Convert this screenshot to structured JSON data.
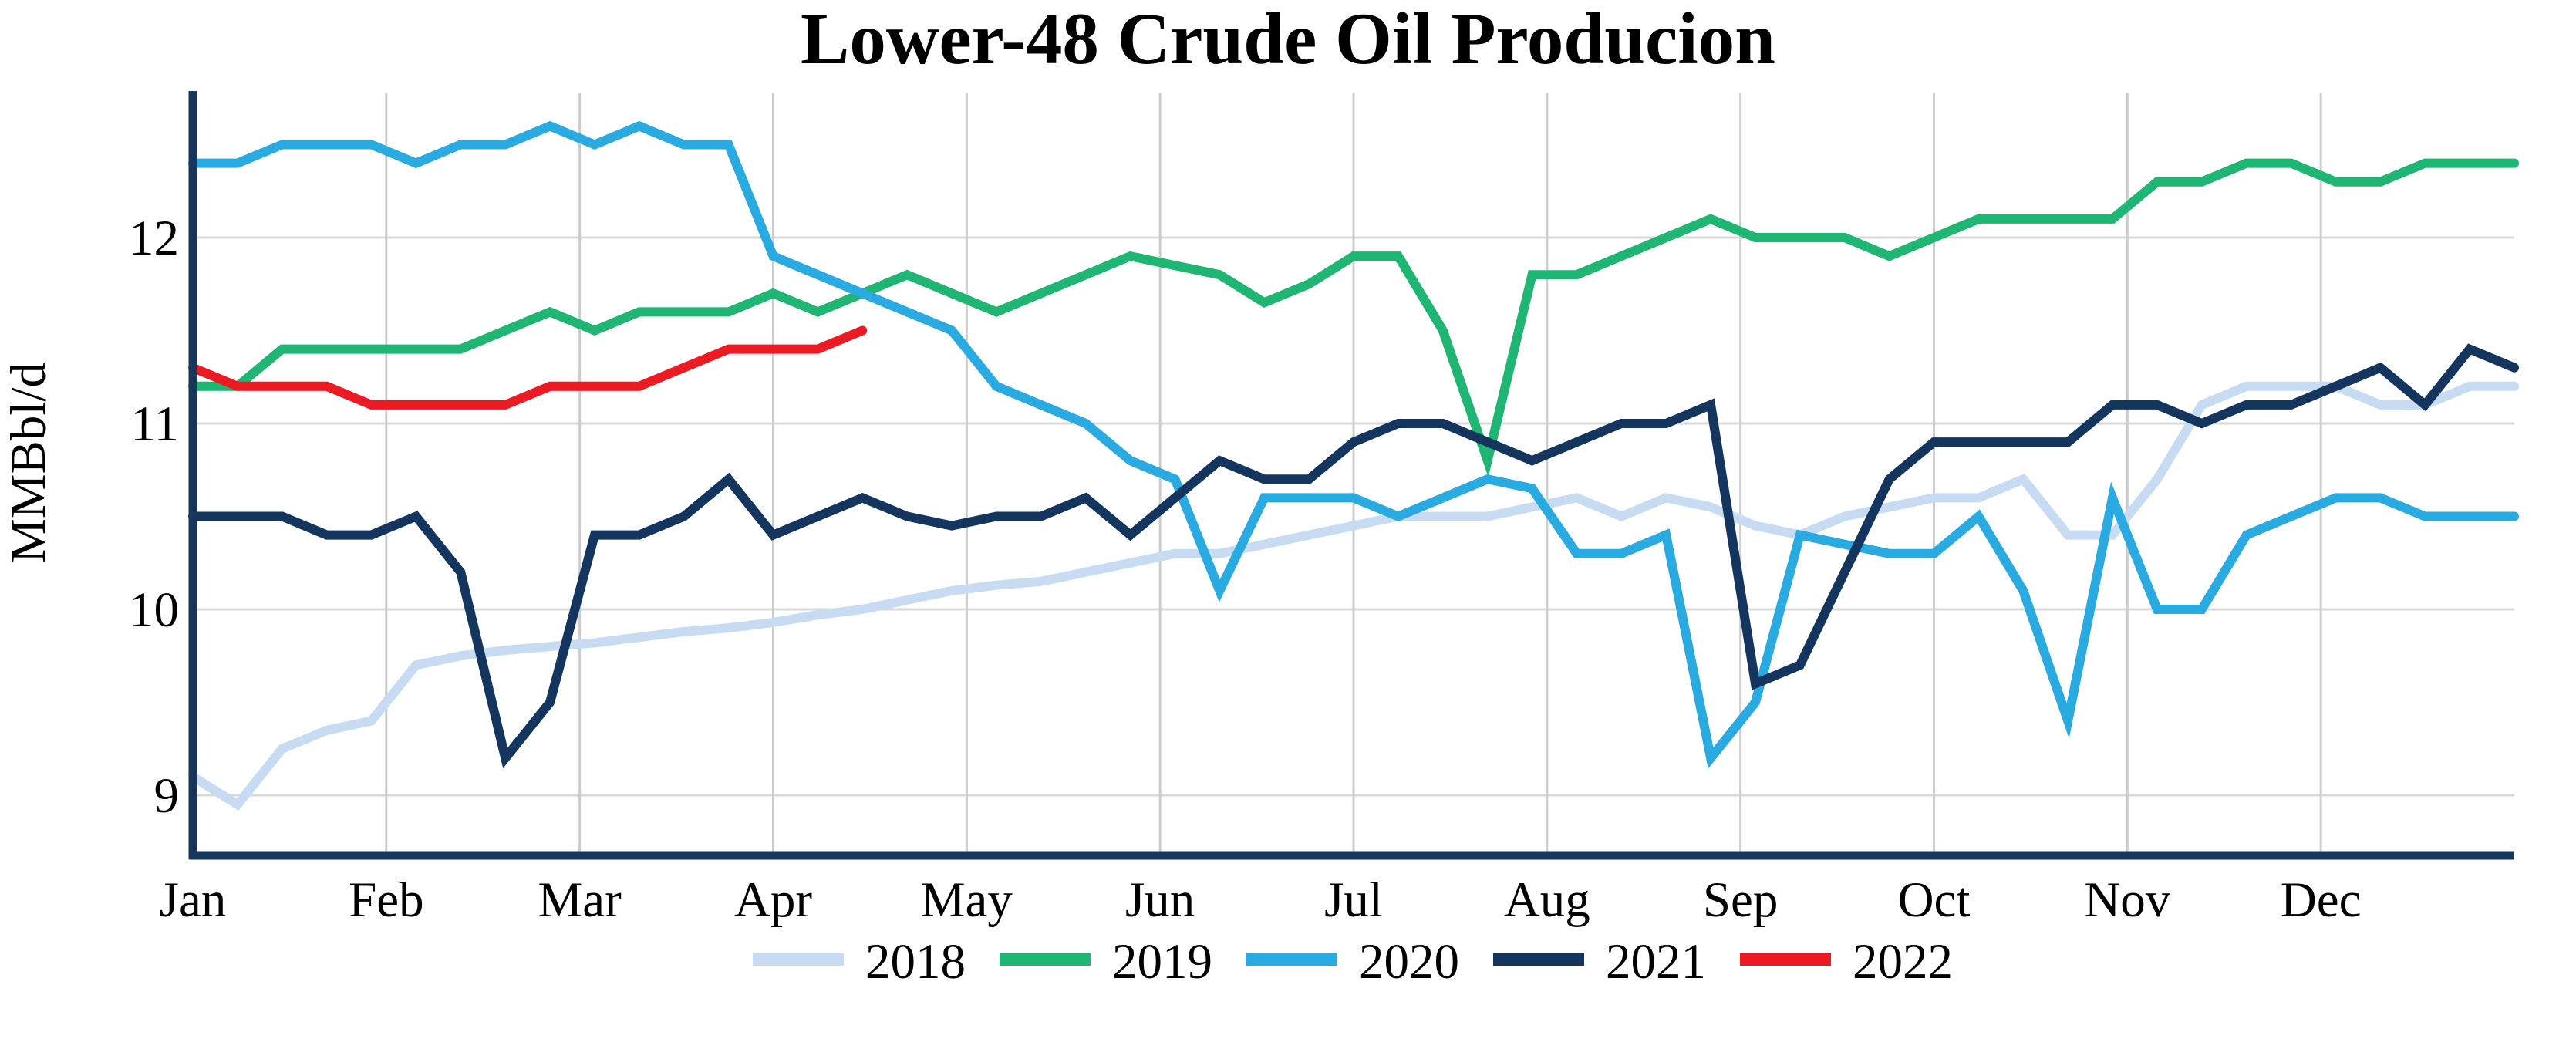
{
  "page": {
    "background_color": "#ffffff",
    "text_color": "#000000"
  },
  "chart_data": {
    "type": "line",
    "title": "Lower-48 Crude Oil Producion",
    "xlabel": "",
    "ylabel": "MMBbl/d",
    "x_unit": "week of year (weekly data, Jan through Dec)",
    "x_tick_labels": [
      "Jan",
      "Feb",
      "Mar",
      "Apr",
      "May",
      "Jun",
      "Jul",
      "Aug",
      "Sep",
      "Oct",
      "Nov",
      "Dec"
    ],
    "y_ticks": [
      9,
      10,
      11,
      12
    ],
    "ylim": [
      8.68,
      12.78
    ],
    "xlim_weeks": [
      0,
      52
    ],
    "grid": true,
    "legend_position": "bottom",
    "axis_color": "#16365c",
    "h_gridline_color": "#d9d9d9",
    "v_gridline_color": "#cccccc",
    "series": [
      {
        "name": "2018",
        "color": "#c7dcf2",
        "values": [
          9.1,
          8.95,
          9.25,
          9.35,
          9.4,
          9.7,
          9.75,
          9.78,
          9.8,
          9.82,
          9.85,
          9.88,
          9.9,
          9.93,
          9.97,
          10.0,
          10.05,
          10.1,
          10.13,
          10.15,
          10.2,
          10.25,
          10.3,
          10.3,
          10.35,
          10.4,
          10.45,
          10.5,
          10.5,
          10.5,
          10.55,
          10.6,
          10.5,
          10.6,
          10.55,
          10.45,
          10.4,
          10.5,
          10.55,
          10.6,
          10.6,
          10.7,
          10.4,
          10.4,
          10.7,
          11.1,
          11.2,
          11.2,
          11.2,
          11.1,
          11.1,
          11.2,
          11.2
        ]
      },
      {
        "name": "2019",
        "color": "#1fb573",
        "values": [
          11.2,
          11.2,
          11.4,
          11.4,
          11.4,
          11.4,
          11.4,
          11.5,
          11.6,
          11.5,
          11.6,
          11.6,
          11.6,
          11.7,
          11.6,
          11.7,
          11.8,
          11.7,
          11.6,
          11.7,
          11.8,
          11.9,
          11.85,
          11.8,
          11.65,
          11.75,
          11.9,
          11.9,
          11.5,
          10.8,
          11.8,
          11.8,
          11.9,
          12.0,
          12.1,
          12.0,
          12.0,
          12.0,
          11.9,
          12.0,
          12.1,
          12.1,
          12.1,
          12.1,
          12.3,
          12.3,
          12.4,
          12.4,
          12.3,
          12.3,
          12.4,
          12.4,
          12.4
        ]
      },
      {
        "name": "2020",
        "color": "#29abe2",
        "values": [
          12.4,
          12.4,
          12.5,
          12.5,
          12.5,
          12.4,
          12.5,
          12.5,
          12.6,
          12.5,
          12.6,
          12.5,
          12.5,
          11.9,
          11.8,
          11.7,
          11.6,
          11.5,
          11.2,
          11.1,
          11.0,
          10.8,
          10.7,
          10.1,
          10.6,
          10.6,
          10.6,
          10.5,
          10.6,
          10.7,
          10.65,
          10.3,
          10.3,
          10.4,
          9.2,
          9.5,
          10.4,
          10.35,
          10.3,
          10.3,
          10.5,
          10.1,
          9.4,
          10.6,
          10.0,
          10.0,
          10.4,
          10.5,
          10.6,
          10.6,
          10.5,
          10.5,
          10.5
        ]
      },
      {
        "name": "2021",
        "color": "#14355e",
        "values": [
          10.5,
          10.5,
          10.5,
          10.4,
          10.4,
          10.5,
          10.2,
          9.2,
          9.5,
          10.4,
          10.4,
          10.5,
          10.7,
          10.4,
          10.5,
          10.6,
          10.5,
          10.45,
          10.5,
          10.5,
          10.6,
          10.4,
          10.6,
          10.8,
          10.7,
          10.7,
          10.9,
          11.0,
          11.0,
          10.9,
          10.8,
          10.9,
          11.0,
          11.0,
          11.1,
          9.6,
          9.7,
          10.2,
          10.7,
          10.9,
          10.9,
          10.9,
          10.9,
          11.1,
          11.1,
          11.0,
          11.1,
          11.1,
          11.2,
          11.3,
          11.1,
          11.4,
          11.3
        ]
      },
      {
        "name": "2022",
        "color": "#ec1b23",
        "values": [
          11.3,
          11.2,
          11.2,
          11.2,
          11.1,
          11.1,
          11.1,
          11.1,
          11.2,
          11.2,
          11.2,
          11.3,
          11.4,
          11.4,
          11.4,
          11.5
        ]
      }
    ]
  }
}
